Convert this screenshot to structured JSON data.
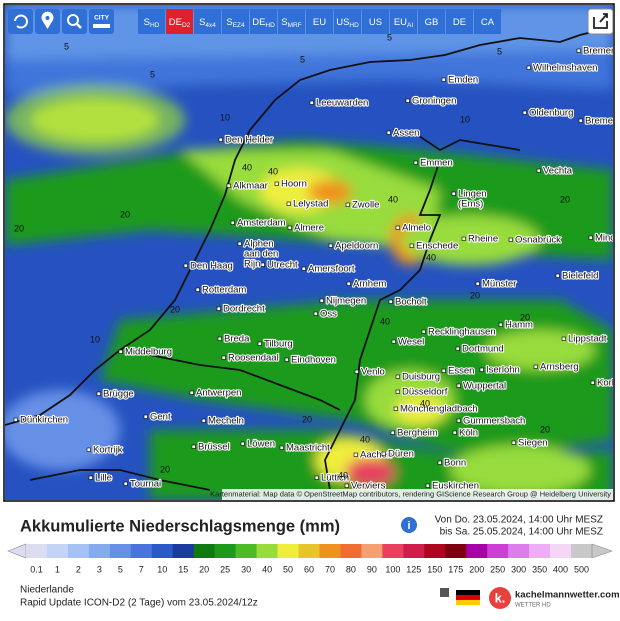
{
  "toolbar": {
    "city": "CITY",
    "models": [
      {
        "label": "S",
        "sub": "HD"
      },
      {
        "label": "DE",
        "sub": "D2",
        "active": true
      },
      {
        "label": "S",
        "sub": "4x4"
      },
      {
        "label": "S",
        "sub": "EZ4"
      },
      {
        "label": "DE",
        "sub": "HD"
      },
      {
        "label": "S",
        "sub": "MRF"
      },
      {
        "label": "EU"
      },
      {
        "label": "US",
        "sub": "HD"
      },
      {
        "label": "US"
      },
      {
        "label": "EU",
        "sub": "AI"
      },
      {
        "label": "GB"
      },
      {
        "label": "DE"
      },
      {
        "label": "CA"
      }
    ]
  },
  "map": {
    "cities": [
      [
        "Bremerhaven"
      ],
      [
        "Wilhelmshaven"
      ],
      [
        "Emden"
      ],
      [
        "Oldenburg"
      ],
      [
        "Bremen"
      ],
      [
        "Leeuwarden"
      ],
      [
        "Groningen"
      ],
      [
        "Assen"
      ],
      [
        "Den Helder"
      ],
      [
        "Emmen"
      ],
      [
        "Vechta"
      ],
      [
        "Alkmaar"
      ],
      [
        "Hoorn"
      ],
      [
        "Lelystad"
      ],
      [
        "Zwolle"
      ],
      [
        "Lingen",
        "(Ems)"
      ],
      [
        "Amsterdam"
      ],
      [
        "Almere"
      ],
      [
        "Almelo"
      ],
      [
        "Osnabrück"
      ],
      [
        "Mind"
      ],
      [
        "Apeldoorn"
      ],
      [
        "Enschede"
      ],
      [
        "Rheine"
      ],
      [
        "Alphen",
        "aan den",
        "Rijn"
      ],
      [
        "Utrecht"
      ],
      [
        "Amersfoort"
      ],
      [
        "Den Haag"
      ],
      [
        "Arnhem"
      ],
      [
        "Bielefeld"
      ],
      [
        "Rotterdam"
      ],
      [
        "Nijmegen"
      ],
      [
        "Münster"
      ],
      [
        "Bocholt"
      ],
      [
        "Dordrecht"
      ],
      [
        "Oss"
      ],
      [
        "Hamm"
      ],
      [
        "Lippstadt"
      ],
      [
        "Breda"
      ],
      [
        "Tilburg"
      ],
      [
        "Recklinghausen"
      ],
      [
        "Wesel"
      ],
      [
        "Dortmund"
      ],
      [
        "Middelburg"
      ],
      [
        "Roosendaal"
      ],
      [
        "Eindhoven"
      ],
      [
        "Venlo"
      ],
      [
        "Duisburg"
      ],
      [
        "Essen"
      ],
      [
        "Iserlohn"
      ],
      [
        "Arnsberg"
      ],
      [
        "Düsseldorf"
      ],
      [
        "Wuppertal"
      ],
      [
        "Korba"
      ],
      [
        "Brügge"
      ],
      [
        "Antwerpen"
      ],
      [
        "Mönchengladbach"
      ],
      [
        "Gummersbach"
      ],
      [
        "Gent"
      ],
      [
        "Mecheln"
      ],
      [
        "Dünkirchen"
      ],
      [
        "Löwen"
      ],
      [
        "Bergheim"
      ],
      [
        "Köln"
      ],
      [
        "Siegen"
      ],
      [
        "Brüssel"
      ],
      [
        "Maastricht"
      ],
      [
        "Kortrijk"
      ],
      [
        "Aachen"
      ],
      [
        "Düren"
      ],
      [
        "Bonn"
      ],
      [
        "Lille"
      ],
      [
        "Tournai"
      ],
      [
        "Lüttich"
      ],
      [
        "Verviers"
      ],
      [
        "Euskirchen"
      ]
    ],
    "contours": [
      "5",
      "5",
      "5",
      "5",
      "5",
      "10",
      "10",
      "20",
      "20",
      "20",
      "40",
      "40",
      "40",
      "40",
      "20",
      "40",
      "20",
      "20",
      "10",
      "40",
      "20",
      "40",
      "20",
      "20",
      "40"
    ],
    "attribution": "Kartenmaterial: Map data © OpenStreetMap contributors, rendering GIScience Research Group @ Heidelberg University"
  },
  "info": {
    "title": "Akkumulierte Niederschlagsmenge (mm)",
    "from": "Von Do. 23.05.2024, 14:00 Uhr MESZ",
    "to": "bis Sa. 25.05.2024, 14:00 Uhr MESZ"
  },
  "legend": {
    "values": [
      0.1,
      1,
      2,
      3,
      5,
      7,
      10,
      15,
      20,
      25,
      30,
      40,
      50,
      60,
      70,
      80,
      90,
      100,
      125,
      150,
      175,
      200,
      250,
      300,
      350,
      400,
      500
    ],
    "colors": [
      "#dcdcf0",
      "#c4d4f6",
      "#a6c2f4",
      "#86aaee",
      "#6690e6",
      "#4a74dc",
      "#2c58c8",
      "#1a3a9e",
      "#0e7a12",
      "#1c9a1c",
      "#4cbc24",
      "#98dc3c",
      "#eeee3e",
      "#e8c42c",
      "#f0901e",
      "#f06c30",
      "#f6a070",
      "#e8405e",
      "#d01e4c",
      "#ae0620",
      "#7e0010",
      "#a800a8",
      "#cc3ed4",
      "#de7cee",
      "#eeaef6",
      "#f6d6f6",
      "#c8c8c8"
    ]
  },
  "footer": {
    "region": "Niederlande",
    "run": "Rapid Update ICON-D2 (2 Tage) vom 23.05.2024/12z",
    "brand": "kachelmannwetter.com",
    "brand_sub": "WETTER HD"
  }
}
